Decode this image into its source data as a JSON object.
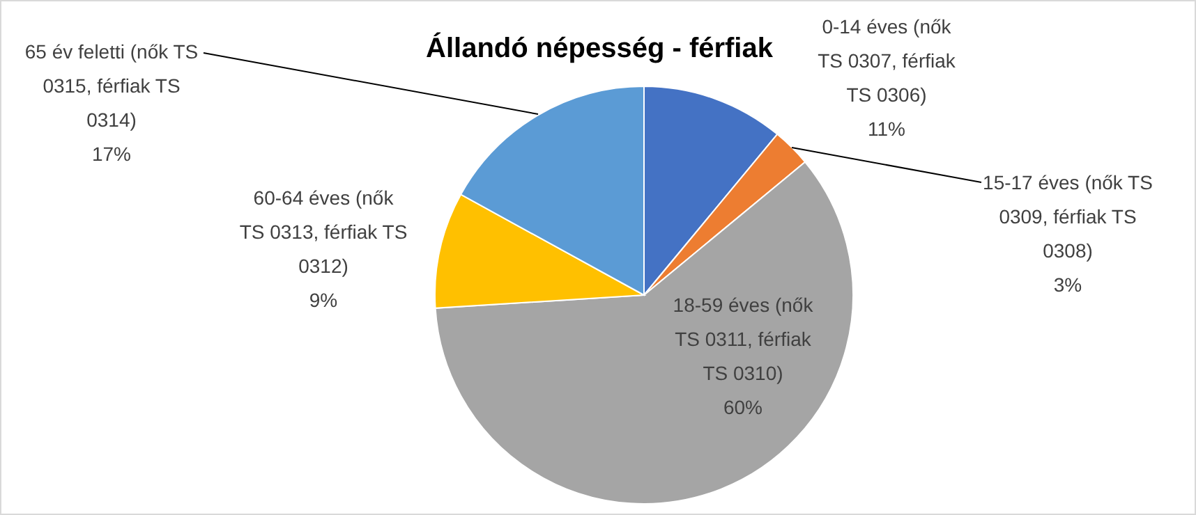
{
  "chart_data": {
    "type": "pie",
    "title": "Állandó népesség - férfiak",
    "categories": [
      "0-14 éves (nők TS 0307, férfiak TS 0306)",
      "15-17 éves (nők TS 0309, férfiak TS 0308)",
      "18-59 éves (nők TS 0311, férfiak TS 0310)",
      "60-64 éves (nők TS 0313, férfiak TS 0312)",
      "65 év feletti (nők TS 0315, férfiak TS 0314)"
    ],
    "values": [
      11,
      3,
      60,
      9,
      17
    ],
    "value_labels": [
      "11%",
      "3%",
      "60%",
      "9%",
      "17%"
    ],
    "colors": [
      "#4472c4",
      "#ed7d31",
      "#a5a5a5",
      "#ffc000",
      "#5b9bd5"
    ]
  }
}
